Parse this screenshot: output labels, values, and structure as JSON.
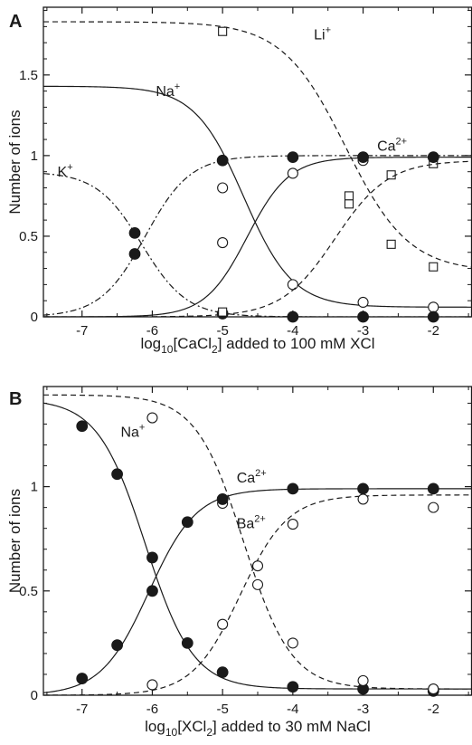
{
  "chart_data": [
    {
      "type": "line",
      "panel": "A",
      "xlabel": "log10[CaCl2] added to 100 mM XCl",
      "xlabel_parts": {
        "pre": "log",
        "sub": "10",
        "mid": "[CaCl",
        "sub2": "2",
        "post": "] added to 100 mM XCl"
      },
      "ylabel": "Number of ions",
      "xlim": [
        -7.55,
        -1.45
      ],
      "ylim": [
        0,
        1.92
      ],
      "xticks": [
        -7,
        -6,
        -5,
        -4,
        -3,
        -2
      ],
      "xtick_labels": [
        "-7",
        "-6",
        "-5",
        "-4",
        "-3",
        "-2"
      ],
      "yticks": [
        0,
        0.5,
        1,
        1.5
      ],
      "ytick_labels": [
        "0",
        "0.5",
        "1",
        "1.5"
      ],
      "grid": false,
      "curve_labels": [
        {
          "series": "Li",
          "base": "Li",
          "sup": "+",
          "at": [
            -3.7,
            1.72
          ]
        },
        {
          "series": "Na",
          "base": "Na",
          "sup": "+",
          "at": [
            -5.95,
            1.37
          ]
        },
        {
          "series": "K",
          "base": "K",
          "sup": "+",
          "at": [
            -7.35,
            0.87
          ]
        },
        {
          "series": "Ca",
          "base": "Ca",
          "sup": "2+",
          "at": [
            -2.8,
            1.03
          ]
        }
      ],
      "series": [
        {
          "key": "Li",
          "style": "dashed",
          "marker": "square-open",
          "curve": {
            "low": 0.28,
            "high": 1.83,
            "mid": -3.25,
            "width": 0.45
          },
          "points": [
            [
              -5.0,
              1.77
            ],
            [
              -3.2,
              0.75
            ],
            [
              -3.2,
              0.7
            ],
            [
              -2.6,
              0.45
            ],
            [
              -2.6,
              0.88
            ],
            [
              -2.0,
              0.95
            ],
            [
              -2.0,
              0.31
            ]
          ]
        },
        {
          "key": "Na",
          "style": "solid",
          "marker": "circle-open",
          "curve": {
            "low": 0.06,
            "high": 1.43,
            "mid": -4.7,
            "width": 0.35
          },
          "points": [
            [
              -5.0,
              0.8
            ],
            [
              -4.0,
              0.2
            ],
            [
              -3.0,
              0.09
            ],
            [
              -2.0,
              0.06
            ]
          ]
        },
        {
          "key": "K",
          "style": "dashdot",
          "marker": "circle-filled",
          "curve": {
            "low": 0.0,
            "high": 0.9,
            "mid": -6.15,
            "width": 0.32
          },
          "points": [
            [
              -6.25,
              0.39
            ],
            [
              -5.0,
              0.02
            ],
            [
              -4.0,
              0.0
            ],
            [
              -3.0,
              0.0
            ],
            [
              -2.0,
              0.0
            ]
          ]
        },
        {
          "key": "Ca_Li",
          "style": "dashed",
          "marker": "square-open",
          "rising": true,
          "curve": {
            "low": 0.0,
            "high": 0.97,
            "mid": -3.4,
            "width": 0.38
          },
          "points": [
            [
              -5.0,
              0.03
            ]
          ]
        },
        {
          "key": "Ca_Na",
          "style": "solid",
          "marker": "circle-open",
          "rising": true,
          "curve": {
            "low": 0.0,
            "high": 0.99,
            "mid": -4.65,
            "width": 0.3
          },
          "points": [
            [
              -5.0,
              0.46
            ],
            [
              -4.0,
              0.89
            ],
            [
              -3.0,
              0.97
            ],
            [
              -2.0,
              0.99
            ]
          ]
        },
        {
          "key": "Ca_K",
          "style": "dashdot",
          "marker": "circle-filled",
          "rising": true,
          "curve": {
            "low": 0.0,
            "high": 1.0,
            "mid": -6.1,
            "width": 0.32
          },
          "points": [
            [
              -6.25,
              0.52
            ],
            [
              -5.0,
              0.97
            ],
            [
              -4.0,
              0.99
            ],
            [
              -3.0,
              0.99
            ],
            [
              -2.0,
              0.99
            ]
          ]
        }
      ]
    },
    {
      "type": "line",
      "panel": "B",
      "xlabel": "log10[XCl2] added to 30 mM NaCl",
      "xlabel_parts": {
        "pre": "log",
        "sub": "10",
        "mid": "[XCl",
        "sub2": "2",
        "post": "] added to 30 mM NaCl"
      },
      "ylabel": "Number of ions",
      "xlim": [
        -7.55,
        -1.45
      ],
      "ylim": [
        0,
        1.48
      ],
      "xticks": [
        -7,
        -6,
        -5,
        -4,
        -3,
        -2
      ],
      "xtick_labels": [
        "-7",
        "-6",
        "-5",
        "-4",
        "-3",
        "-2"
      ],
      "yticks": [
        0,
        0.5,
        1
      ],
      "ytick_labels": [
        "0",
        "0.5",
        "1"
      ],
      "grid": false,
      "curve_labels": [
        {
          "series": "Na",
          "base": "Na",
          "sup": "+",
          "at": [
            -6.45,
            1.24
          ]
        },
        {
          "series": "Ca",
          "base": "Ca",
          "sup": "2+",
          "at": [
            -4.8,
            1.02
          ]
        },
        {
          "series": "Ba",
          "base": "Ba",
          "sup": "2+",
          "at": [
            -4.8,
            0.8
          ]
        }
      ],
      "series": [
        {
          "key": "Na_Ca",
          "style": "solid",
          "marker": "circle-filled",
          "curve": {
            "low": 0.03,
            "high": 1.42,
            "mid": -6.1,
            "width": 0.34
          },
          "points": [
            [
              -7.0,
              1.29
            ],
            [
              -6.5,
              1.06
            ],
            [
              -6.0,
              0.5
            ],
            [
              -5.5,
              0.25
            ],
            [
              -5.0,
              0.11
            ],
            [
              -4.0,
              0.04
            ],
            [
              -3.0,
              0.03
            ],
            [
              -2.0,
              0.02
            ]
          ]
        },
        {
          "key": "Na_Ba",
          "style": "dashed",
          "marker": "circle-open",
          "curve": {
            "low": 0.03,
            "high": 1.44,
            "mid": -4.7,
            "width": 0.34
          },
          "points": [
            [
              -6.0,
              1.33
            ],
            [
              -5.0,
              0.92
            ],
            [
              -4.5,
              0.53
            ],
            [
              -4.0,
              0.25
            ],
            [
              -3.0,
              0.07
            ],
            [
              -2.0,
              0.03
            ]
          ]
        },
        {
          "key": "Ca",
          "style": "solid",
          "marker": "circle-filled",
          "rising": true,
          "curve": {
            "low": 0.0,
            "high": 0.99,
            "mid": -6.05,
            "width": 0.34
          },
          "points": [
            [
              -7.0,
              0.08
            ],
            [
              -6.5,
              0.24
            ],
            [
              -6.0,
              0.66
            ],
            [
              -5.5,
              0.83
            ],
            [
              -5.0,
              0.94
            ],
            [
              -4.0,
              0.99
            ],
            [
              -3.0,
              0.99
            ],
            [
              -2.0,
              0.99
            ]
          ]
        },
        {
          "key": "Ba",
          "style": "dashed",
          "marker": "circle-open",
          "rising": true,
          "curve": {
            "low": 0.0,
            "high": 0.96,
            "mid": -4.75,
            "width": 0.34
          },
          "points": [
            [
              -6.0,
              0.05
            ],
            [
              -5.0,
              0.34
            ],
            [
              -4.5,
              0.62
            ],
            [
              -4.0,
              0.82
            ],
            [
              -3.0,
              0.94
            ],
            [
              -2.0,
              0.9
            ]
          ]
        }
      ]
    }
  ]
}
